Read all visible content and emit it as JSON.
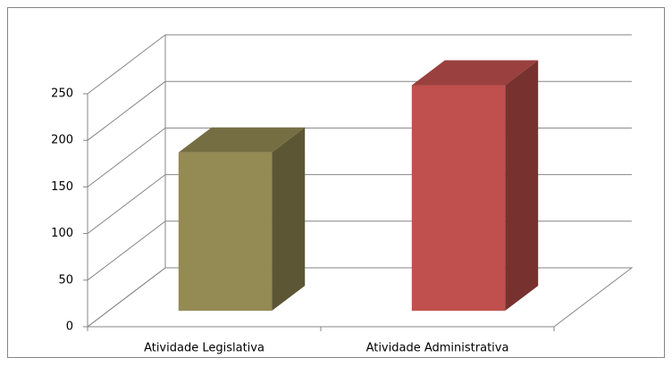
{
  "chart_data": {
    "type": "bar3d",
    "categories": [
      "Atividade Legislativa",
      "Atividade Administrativa"
    ],
    "values": [
      170,
      242
    ],
    "colors": [
      "#948a54",
      "#c0504d"
    ],
    "ylim": [
      0,
      250
    ],
    "yticks": [
      0,
      50,
      100,
      150,
      200,
      250
    ],
    "grid": true
  }
}
